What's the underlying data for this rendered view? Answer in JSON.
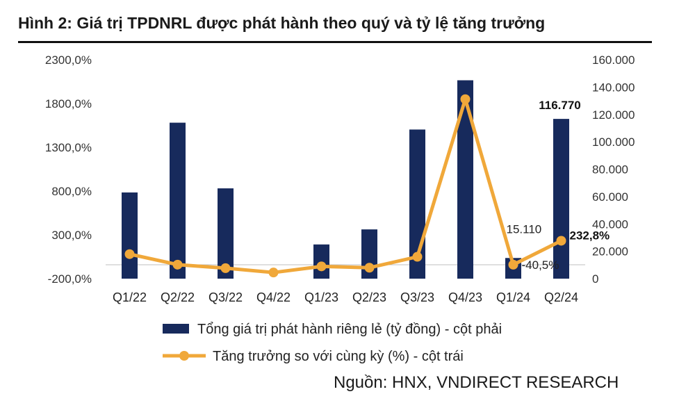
{
  "title": "Hình 2: Giá trị TPDNRL được phát hành theo quý và tỷ lệ tăng trưởng",
  "source": "Nguồn: HNX, VNDIRECT RESEARCH",
  "colors": {
    "bar": "#172a5c",
    "line": "#f0a83a",
    "title_rule": "#111111"
  },
  "chart_data": {
    "type": "bar",
    "categories": [
      "Q1/22",
      "Q2/22",
      "Q3/22",
      "Q4/22",
      "Q1/23",
      "Q2/23",
      "Q3/23",
      "Q4/23",
      "Q1/24",
      "Q2/24"
    ],
    "y_left": {
      "ticks": [
        -200,
        300,
        800,
        1300,
        1800,
        2300
      ],
      "tick_labels": [
        "-200,0%",
        "300,0%",
        "800,0%",
        "1300,0%",
        "1800,0%",
        "2300,0%"
      ],
      "ylim": [
        -200,
        2300
      ]
    },
    "y_right": {
      "ticks": [
        0,
        20000,
        40000,
        60000,
        80000,
        100000,
        120000,
        140000,
        160000
      ],
      "tick_labels": [
        "0",
        "20.000",
        "40.000",
        "60.000",
        "80.000",
        "100.000",
        "120.000",
        "140.000",
        "160.000"
      ],
      "ylim": [
        0,
        160000
      ]
    },
    "series": [
      {
        "name": "Tổng giá trị phát hành riêng lẻ (tỷ đồng) - cột phải",
        "type": "bar",
        "axis": "right",
        "values": [
          63000,
          114000,
          66000,
          0,
          25000,
          36000,
          109000,
          145000,
          15110,
          116770
        ]
      },
      {
        "name": "Tăng trưởng so với cùng kỳ (%) - cột trái",
        "type": "line",
        "axis": "left",
        "values": [
          80,
          -40,
          -80,
          -130,
          -60,
          -75,
          50,
          1850,
          -40.5,
          232.8
        ]
      }
    ],
    "annotations": [
      {
        "text": "116.770",
        "bold": true
      },
      {
        "text": "15.110",
        "bold": false
      },
      {
        "text": "-40,5%",
        "bold": false
      },
      {
        "text": "232,8%",
        "bold": true
      }
    ],
    "legend_position": "bottom",
    "grid": false
  }
}
